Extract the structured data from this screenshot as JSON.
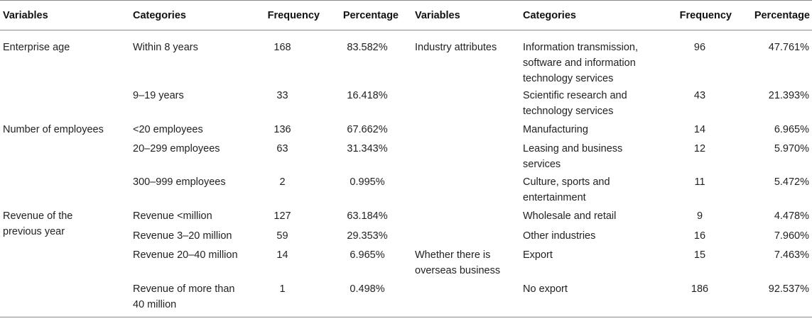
{
  "header": {
    "variables": "Variables",
    "categories": "Categories",
    "frequency": "Frequency",
    "percentage": "Percentage",
    "variables_2": "Variables",
    "categories_2": "Categories",
    "frequency_2": "Frequency",
    "percentage_2": "Percentage"
  },
  "left": {
    "enterprise_age": "Enterprise age",
    "number_of_employees": "Number of employees",
    "revenue_var_line1": "Revenue of the",
    "revenue_var_line2": "previous year",
    "rows": [
      {
        "category": "Within 8 years",
        "frequency": "168",
        "percentage": "83.582%"
      },
      {
        "category": "9–19 years",
        "frequency": "33",
        "percentage": "16.418%"
      },
      {
        "category": "<20 employees",
        "frequency": "136",
        "percentage": "67.662%"
      },
      {
        "category": "20–299 employees",
        "frequency": "63",
        "percentage": "31.343%"
      },
      {
        "category": "300–999 employees",
        "frequency": "2",
        "percentage": "0.995%"
      },
      {
        "category": "Revenue <million",
        "frequency": "127",
        "percentage": "63.184%"
      },
      {
        "category": "Revenue 3–20 million",
        "frequency": "59",
        "percentage": "29.353%"
      },
      {
        "category": "Revenue 20–40 million",
        "frequency": "14",
        "percentage": "6.965%"
      },
      {
        "category_line1": "Revenue of more than",
        "category_line2": "40 million",
        "frequency": "1",
        "percentage": "0.498%"
      }
    ]
  },
  "right": {
    "industry_attributes": "Industry attributes",
    "overseas_line1": "Whether there is",
    "overseas_line2": "overseas business",
    "rows": [
      {
        "line1": "Information transmission,",
        "line2": "software and information",
        "line3": "technology services",
        "frequency": "96",
        "percentage": "47.761%"
      },
      {
        "line1": "Scientific research and",
        "line2": "technology services",
        "frequency": "43",
        "percentage": "21.393%"
      },
      {
        "line1": "Manufacturing",
        "frequency": "14",
        "percentage": "6.965%"
      },
      {
        "line1": "Leasing and business",
        "line2": "services",
        "frequency": "12",
        "percentage": "5.970%"
      },
      {
        "line1": "Culture, sports and",
        "line2": "entertainment",
        "frequency": "11",
        "percentage": "5.472%"
      },
      {
        "line1": "Wholesale and retail",
        "frequency": "9",
        "percentage": "4.478%"
      },
      {
        "line1": "Other industries",
        "frequency": "16",
        "percentage": "7.960%"
      },
      {
        "line1": "Export",
        "frequency": "15",
        "percentage": "7.463%"
      },
      {
        "line1": "No export",
        "frequency": "186",
        "percentage": "92.537%"
      }
    ]
  }
}
